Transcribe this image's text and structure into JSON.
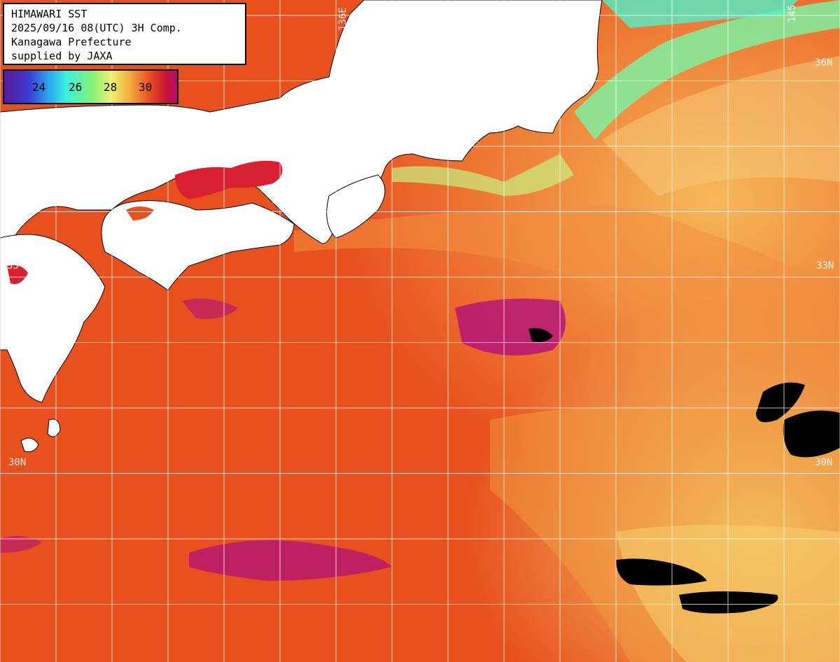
{
  "title_box": {
    "line1": "HIMAWARI SST",
    "line2": "2025/09/16 08(UTC) 3H Comp.",
    "line3": "Kanagawa Prefecture",
    "line4": "supplied by JAXA"
  },
  "legend": {
    "ticks": [
      "24",
      "26",
      "28",
      "30"
    ],
    "colors": [
      "#5a1a9a",
      "#2aa8f0",
      "#7ff07a",
      "#f0f070",
      "#e85020",
      "#b0106a"
    ]
  },
  "grid": {
    "lat_labels": [
      "36N",
      "33N",
      "30N",
      "33",
      "30N"
    ],
    "lon_labels": [
      "136E",
      "145"
    ]
  },
  "colors": {
    "land": "#ffffff",
    "no_data": "#000000",
    "grid": "#ffffff"
  }
}
